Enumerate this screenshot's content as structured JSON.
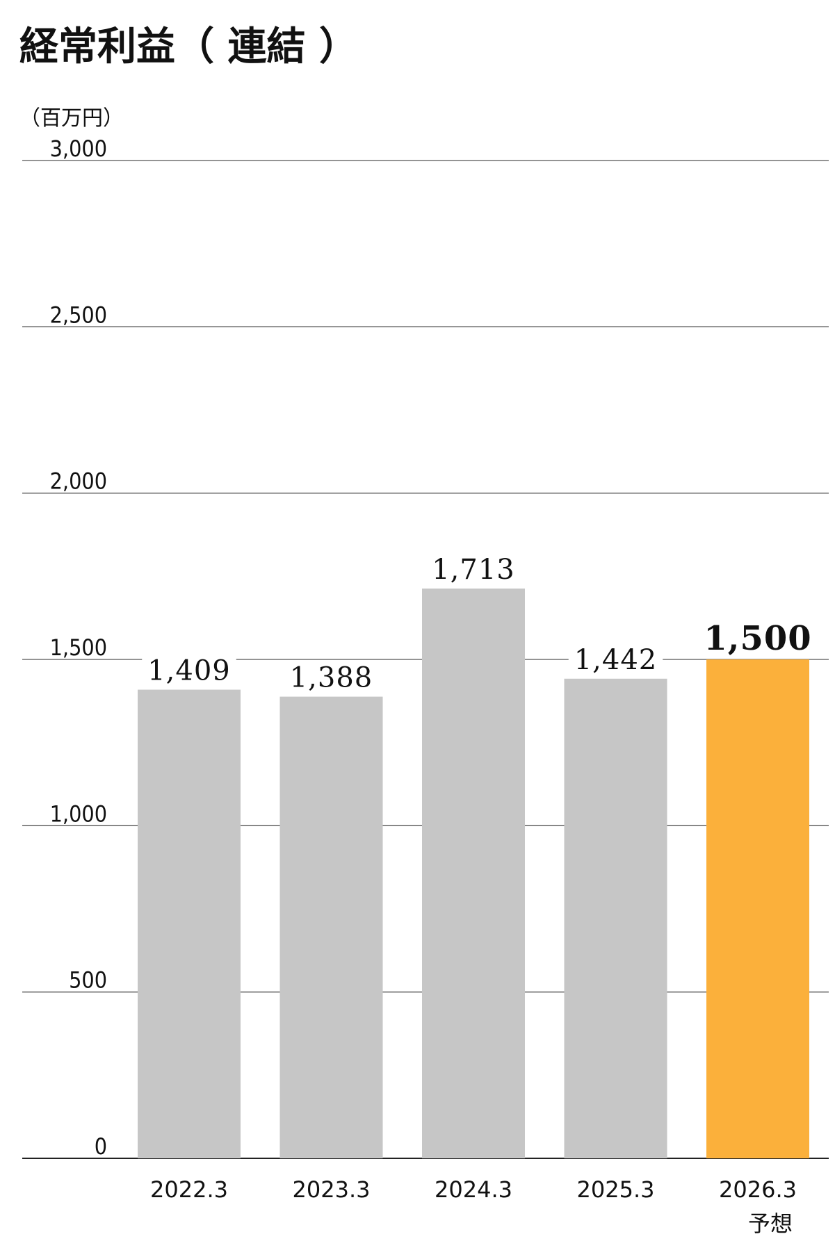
{
  "chart_data": {
    "type": "bar",
    "title": "経常利益（ 連結 ）",
    "ylabel": "（百万円）",
    "xlabel": "",
    "categories": [
      "2022.3",
      "2023.3",
      "2024.3",
      "2025.3",
      "2026.3"
    ],
    "category_notes": [
      "",
      "",
      "",
      "",
      "予想"
    ],
    "values": [
      1409,
      1388,
      1713,
      1442,
      1500
    ],
    "value_labels": [
      "1,409",
      "1,388",
      "1,713",
      "1,442",
      "1,500"
    ],
    "ylim": [
      0,
      3000
    ],
    "yticks": [
      0,
      500,
      1000,
      1500,
      2000,
      2500,
      3000
    ],
    "ytick_labels": [
      "0",
      "500",
      "1,000",
      "1,500",
      "2,000",
      "2,500",
      "3,000"
    ],
    "grid": true,
    "colors": {
      "actual": "#c6c6c6",
      "forecast": "#fbb03b",
      "grid": "#555555"
    },
    "highlight_index": 4
  }
}
